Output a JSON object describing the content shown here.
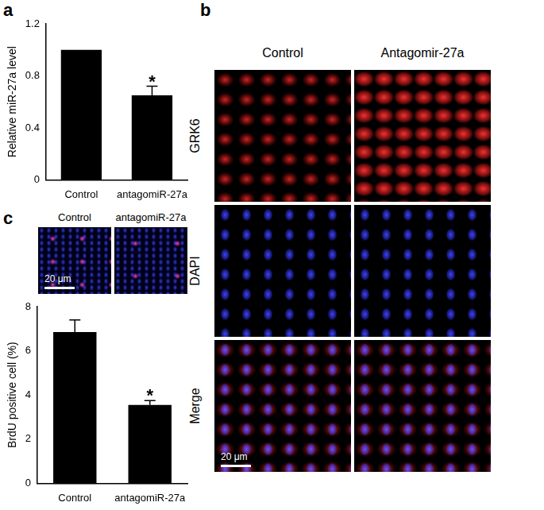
{
  "chart_data": [
    {
      "type": "bar",
      "title": "a",
      "y_label": "Relative miR-27a level",
      "categories": [
        "Control",
        "antagomiR-27a"
      ],
      "values": [
        1.0,
        0.65
      ],
      "errors": [
        0,
        0.07
      ],
      "significance": [
        null,
        "*"
      ],
      "color": "#000000",
      "ylim": [
        0,
        1.2
      ],
      "yticks": [
        0,
        0.4,
        0.8,
        1.2
      ],
      "grid": false
    },
    {
      "type": "bar",
      "title": "c",
      "y_label": "BrdU positive cell (%)",
      "categories": [
        "Control",
        "antagomiR-27a"
      ],
      "values": [
        6.85,
        3.55
      ],
      "errors": [
        0.55,
        0.2
      ],
      "significance": [
        null,
        "*"
      ],
      "color": "#000000",
      "ylim": [
        0,
        8
      ],
      "yticks": [
        0,
        2,
        4,
        6,
        8
      ],
      "grid": false
    }
  ],
  "images": {
    "b": {
      "label": "b",
      "columns": [
        "Control",
        "Antagomir-27a"
      ],
      "rows": [
        "GRK6",
        "DAPI",
        "Merge"
      ],
      "scale_bar": "20 μm"
    },
    "c": {
      "columns": [
        "Control",
        "antagomiR-27a"
      ],
      "scale_bar": "20 μm"
    }
  }
}
